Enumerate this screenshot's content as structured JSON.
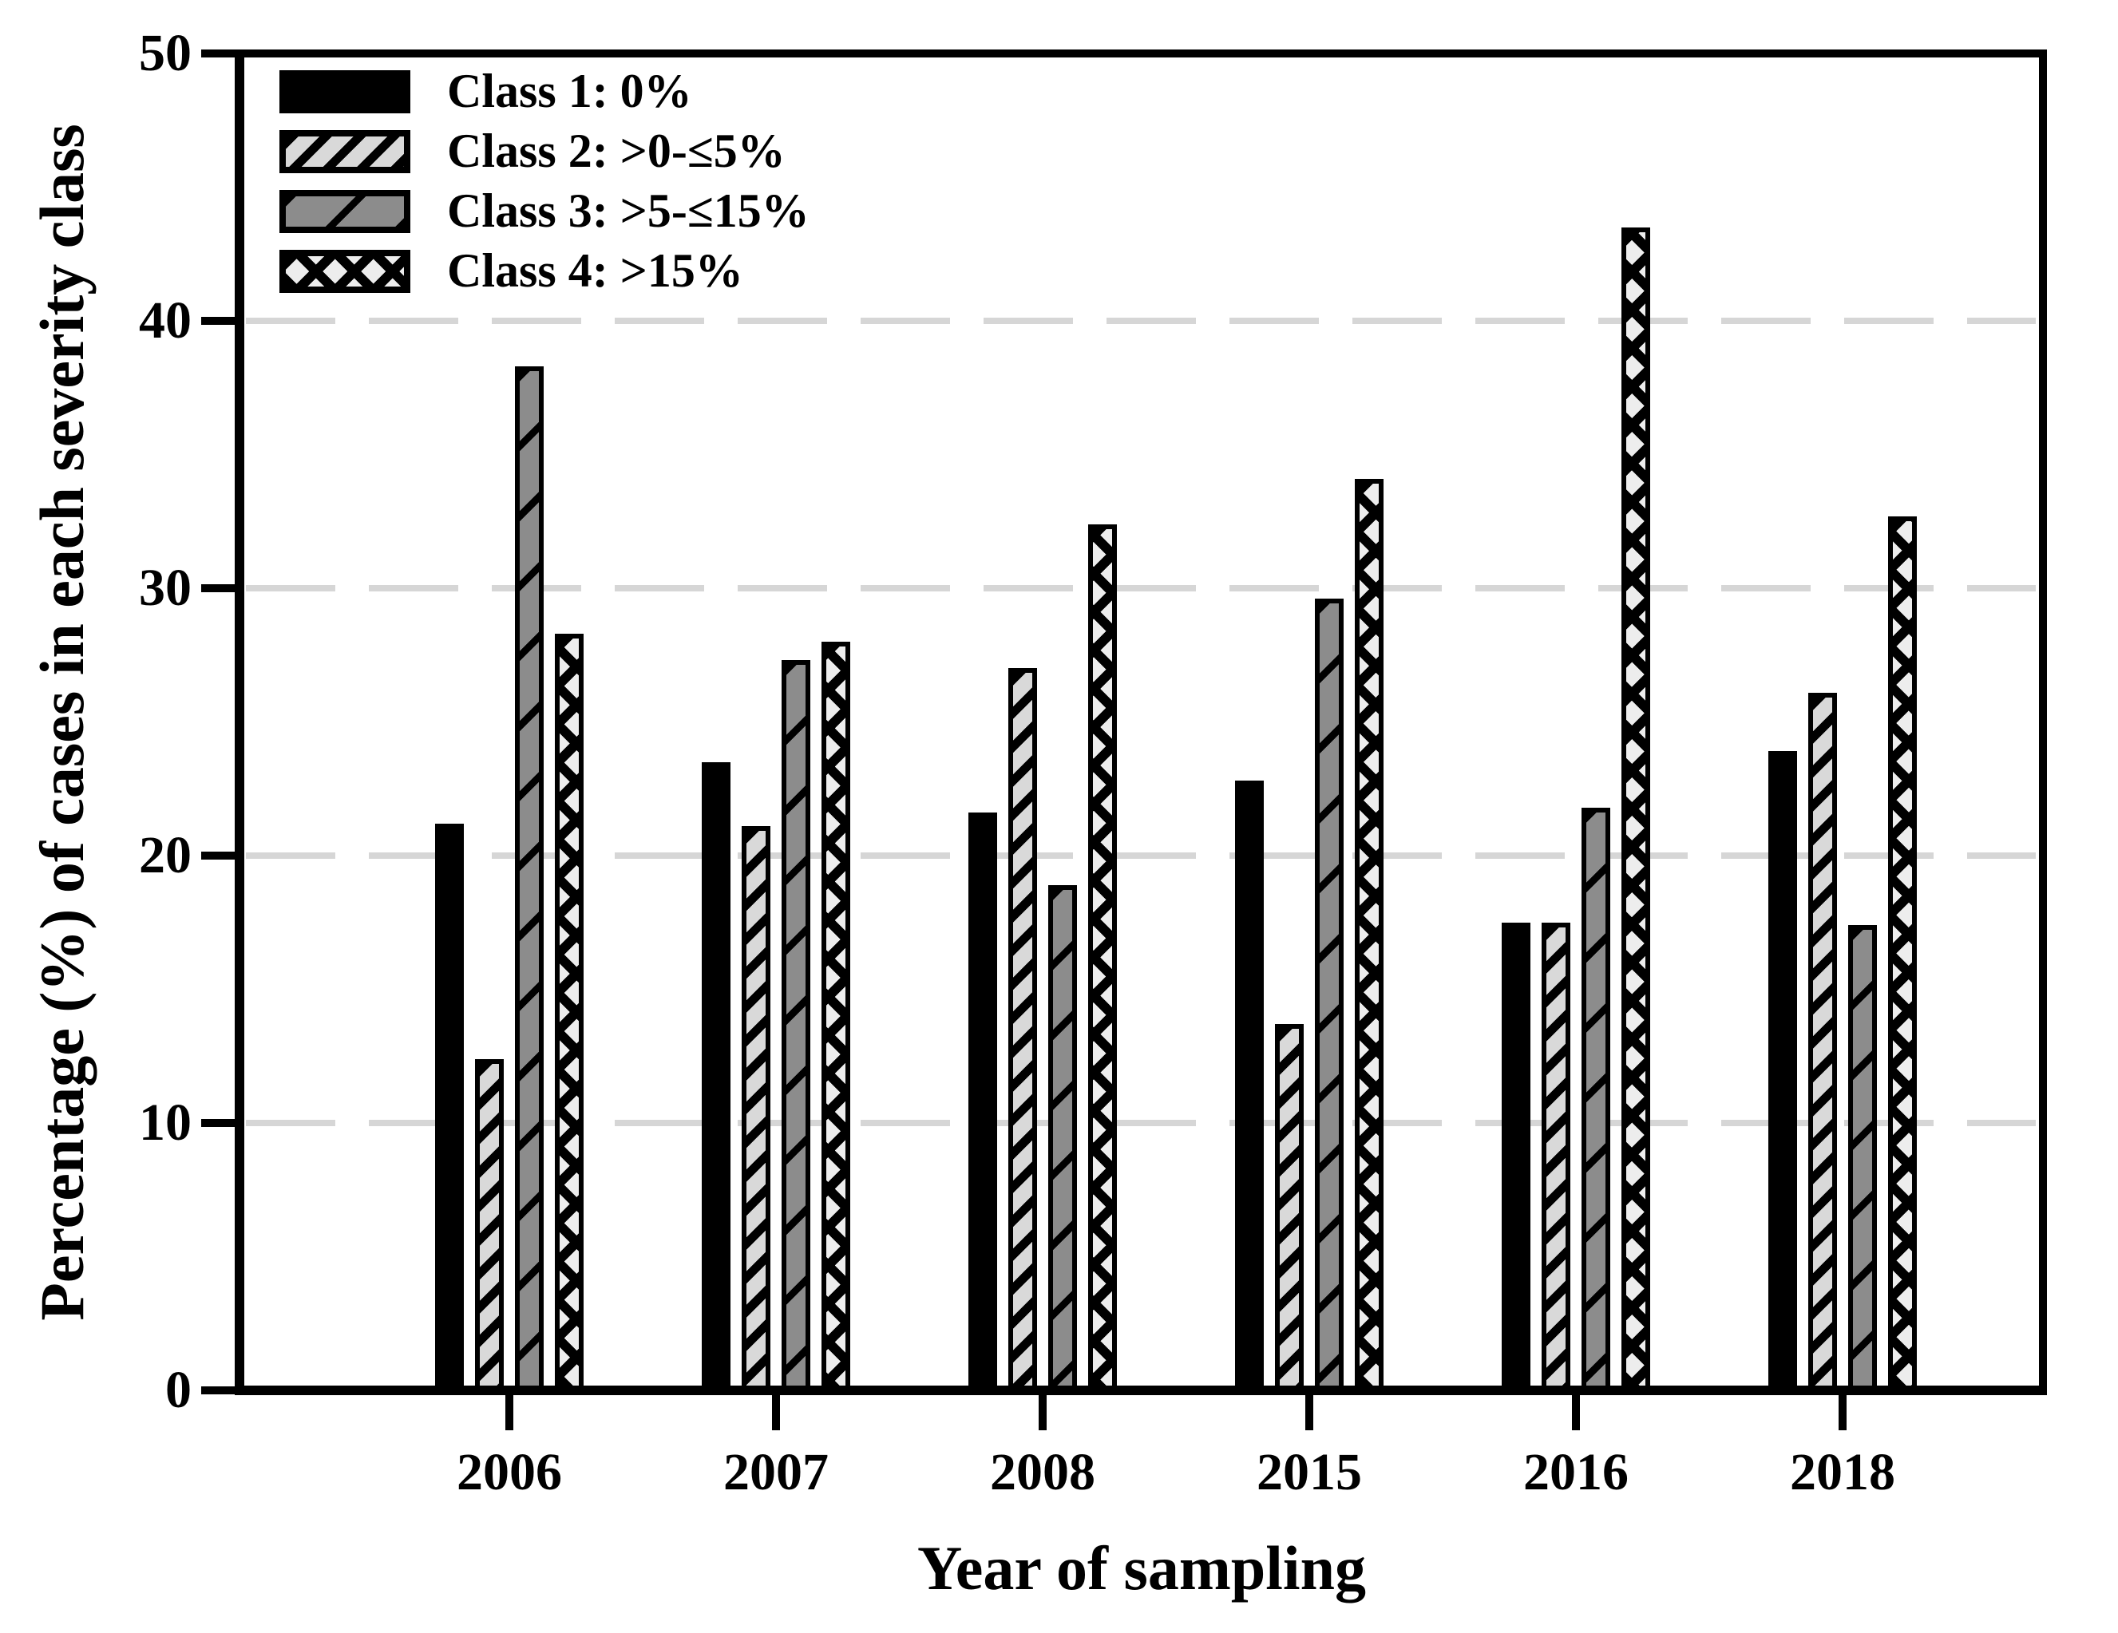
{
  "chart_data": {
    "type": "bar",
    "title": "",
    "xlabel": "Year of sampling",
    "ylabel": "Percentage (%) of cases in each severity class",
    "categories": [
      "2006",
      "2007",
      "2008",
      "2015",
      "2016",
      "2018"
    ],
    "series": [
      {
        "name": "Class 1: 0%",
        "pattern": "solid-black",
        "values": [
          21.2,
          23.5,
          21.6,
          22.8,
          17.5,
          23.9
        ]
      },
      {
        "name": "Class 2: >0-≤5%",
        "pattern": "light-diagonal-hatch",
        "values": [
          12.4,
          21.1,
          27.0,
          13.7,
          17.5,
          26.1
        ]
      },
      {
        "name": "Class 3: >5-≤15%",
        "pattern": "gray-sparse-diagonal",
        "values": [
          38.3,
          27.3,
          18.9,
          29.6,
          21.8,
          17.4
        ]
      },
      {
        "name": "Class 4: >15%",
        "pattern": "black-crosshatch",
        "values": [
          28.3,
          28.0,
          32.4,
          34.1,
          43.5,
          32.7
        ]
      }
    ],
    "ylim": [
      0,
      50
    ],
    "yticks": [
      0,
      10,
      20,
      30,
      40,
      50
    ],
    "ytick_labels": [
      "0",
      "10",
      "20",
      "30",
      "40",
      "50"
    ],
    "grid": "horizontal dashed gridlines at 10, 20, 30, 40",
    "legend_position": "top-left inside plot"
  },
  "colors": {
    "bar_border": "#000000",
    "class1_fill": "#000000",
    "class2_fill": "#d9d9d9",
    "class3_fill": "#8c8c8c",
    "class4_fill": "#ededed",
    "gridline": "#d6d6d6",
    "axis": "#000000",
    "background": "#ffffff"
  }
}
